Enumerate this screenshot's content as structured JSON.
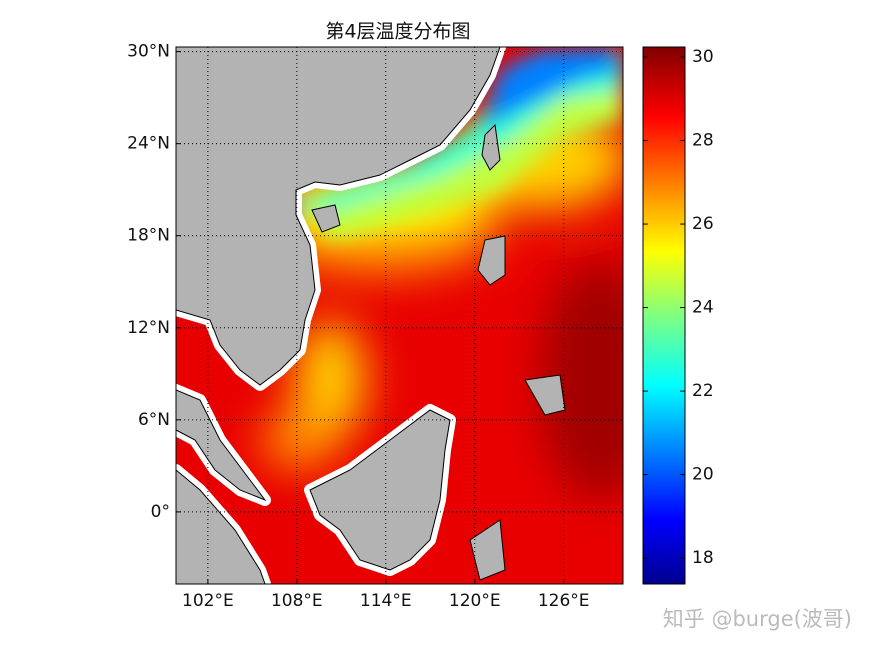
{
  "map": {
    "title": "第4层温度分布图",
    "xlim": [
      99.85,
      130
    ],
    "ylim": [
      -4.7,
      30.3
    ],
    "xticks": [
      {
        "value": 102,
        "label": "102°E"
      },
      {
        "value": 108,
        "label": "108°E"
      },
      {
        "value": 114,
        "label": "114°E"
      },
      {
        "value": 120,
        "label": "120°E"
      },
      {
        "value": 126,
        "label": "126°E"
      }
    ],
    "yticks": [
      {
        "value": 0,
        "label": "0°"
      },
      {
        "value": 6,
        "label": "6°N"
      },
      {
        "value": 12,
        "label": "12°N"
      },
      {
        "value": 18,
        "label": "18°N"
      },
      {
        "value": 24,
        "label": "24°N"
      },
      {
        "value": 30,
        "label": "30°N"
      }
    ],
    "grid": true,
    "colorbar": {
      "lim": [
        17.38,
        30.24
      ],
      "ticks": [
        18,
        20,
        22,
        24,
        26,
        28,
        30
      ]
    }
  },
  "watermark": "知乎 @burge(波哥)"
}
